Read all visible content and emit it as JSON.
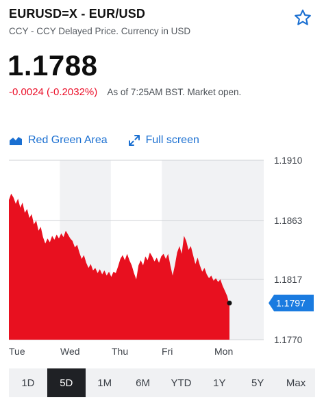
{
  "header": {
    "title": "EURUSD=X - EUR/USD",
    "subtitle": "CCY - CCY Delayed Price. Currency in USD"
  },
  "quote": {
    "price": "1.1788",
    "change": "-0.0024 (-0.2032%)",
    "as_of": "As of 7:25AM BST. Market open."
  },
  "toolbar": {
    "chart_type_label": "Red Green Area",
    "fullscreen_label": "Full screen"
  },
  "colors": {
    "accent": "#1a6fd1",
    "negative": "#eb0f29",
    "area_fill": "#e8101f",
    "active_range_bg": "#1f2125"
  },
  "chart_data": {
    "type": "area",
    "x_tick_labels": [
      "Tue",
      "Wed",
      "Thu",
      "Fri",
      "Mon"
    ],
    "y_tick_labels": [
      "1.1910",
      "1.1863",
      "1.1817",
      "1.1770"
    ],
    "current_value_label": "1.1797",
    "ylim": [
      1.177,
      1.191
    ],
    "grid": true,
    "shaded_days": [
      "Wed",
      "Fri"
    ],
    "values": [
      1.1879,
      1.1884,
      1.1881,
      1.1876,
      1.188,
      1.1873,
      1.1877,
      1.1869,
      1.1872,
      1.1865,
      1.1868,
      1.186,
      1.1863,
      1.1855,
      1.1858,
      1.185,
      1.1845,
      1.1849,
      1.1846,
      1.1851,
      1.1848,
      1.1852,
      1.1849,
      1.1853,
      1.185,
      1.1855,
      1.1852,
      1.1849,
      1.1847,
      1.1842,
      1.1844,
      1.1838,
      1.1833,
      1.1836,
      1.183,
      1.1826,
      1.1829,
      1.1824,
      1.1826,
      1.1822,
      1.1825,
      1.1821,
      1.1824,
      1.182,
      1.1823,
      1.1819,
      1.1823,
      1.1822,
      1.1827,
      1.1833,
      1.1836,
      1.1832,
      1.1837,
      1.1832,
      1.1828,
      1.1822,
      1.1817,
      1.1828,
      1.1832,
      1.1828,
      1.1835,
      1.1832,
      1.1838,
      1.1835,
      1.1831,
      1.1834,
      1.183,
      1.1835,
      1.1837,
      1.1833,
      1.1837,
      1.1828,
      1.182,
      1.1828,
      1.1838,
      1.1843,
      1.1837,
      1.1851,
      1.1847,
      1.184,
      1.1843,
      1.1836,
      1.1829,
      1.1834,
      1.1828,
      1.1823,
      1.1826,
      1.1821,
      1.1818,
      1.182,
      1.1816,
      1.1818,
      1.1815,
      1.1817,
      1.1812,
      1.1808,
      1.1804,
      1.1797
    ],
    "last_point": 1.1797
  },
  "ranges": [
    {
      "label": "1D",
      "active": false
    },
    {
      "label": "5D",
      "active": true
    },
    {
      "label": "1M",
      "active": false
    },
    {
      "label": "6M",
      "active": false
    },
    {
      "label": "YTD",
      "active": false
    },
    {
      "label": "1Y",
      "active": false
    },
    {
      "label": "5Y",
      "active": false
    },
    {
      "label": "Max",
      "active": false
    }
  ]
}
